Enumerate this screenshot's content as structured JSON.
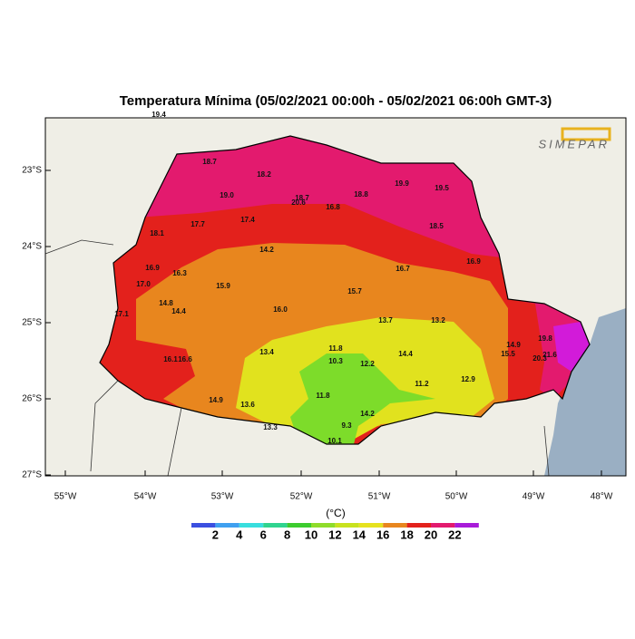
{
  "header": {
    "title": "Temperatura Mínima (05/02/2021 00:00h - 05/02/2021 06:00h GMT-3)",
    "logo": "SIMEPAR"
  },
  "map": {
    "lat_labels": [
      "23°S",
      "24°S",
      "25°S",
      "26°S",
      "27°S"
    ],
    "lon_labels": [
      "55°W",
      "54°W",
      "53°W",
      "52°W",
      "51°W",
      "50°W",
      "49°W",
      "48°W"
    ],
    "stations": [
      "19.4",
      "18.7",
      "18.2",
      "19.0",
      "20.6",
      "18.7",
      "18.8",
      "19.9",
      "19.5",
      "16.8",
      "18.5",
      "18.1",
      "17.7",
      "17.4",
      "14.2",
      "16.9",
      "16.3",
      "17.0",
      "15.9",
      "16.7",
      "16.9",
      "15.7",
      "16.0",
      "14.8",
      "14.4",
      "17.1",
      "13.7",
      "13.2",
      "11.8",
      "13.4",
      "14.4",
      "10.3",
      "12.2",
      "16.1",
      "16.6",
      "14.9",
      "15.5",
      "19.8",
      "20.3",
      "21.6",
      "11.2",
      "12.9",
      "14.9",
      "13.6",
      "11.8",
      "14.2",
      "9.3",
      "13.3",
      "10.1"
    ]
  },
  "colorbar": {
    "unit": "(°C)",
    "labels": [
      "2",
      "4",
      "6",
      "8",
      "10",
      "12",
      "14",
      "16",
      "18",
      "20",
      "22"
    ]
  }
}
